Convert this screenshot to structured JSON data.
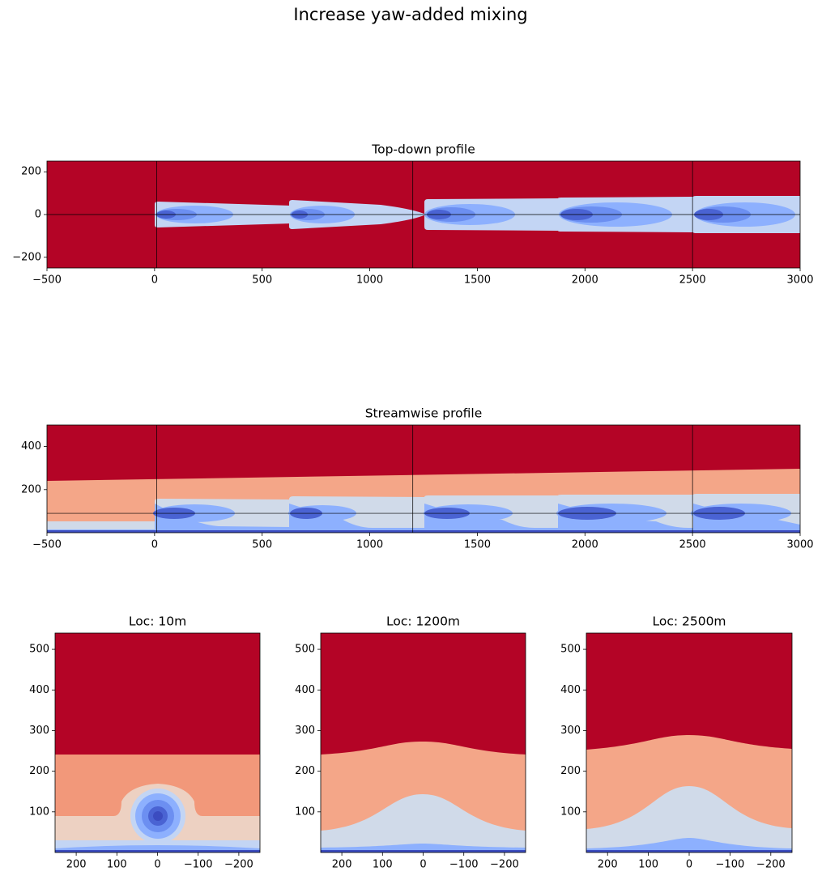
{
  "title": "Increase yaw-added mixing",
  "chart_data": [
    {
      "type": "contour",
      "title": "Top-down profile",
      "xlim": [
        -500,
        3000
      ],
      "ylim": [
        -250,
        250
      ],
      "xticks": [
        {
          "value": -500,
          "label": "−500"
        },
        0,
        500,
        1000,
        1500,
        2000,
        2500,
        3000
      ],
      "yticks": [
        {
          "value": -200,
          "label": "−200"
        },
        0,
        200
      ],
      "vlines": [
        10,
        1200,
        2500
      ],
      "hline": 0
    },
    {
      "type": "contour",
      "title": "Streamwise profile",
      "xlim": [
        -500,
        3000
      ],
      "ylim": [
        0,
        500
      ],
      "xticks": [
        {
          "value": -500,
          "label": "−500"
        },
        0,
        500,
        1000,
        1500,
        2000,
        2500,
        3000
      ],
      "yticks": [
        200,
        400
      ],
      "vlines": [
        10,
        1200,
        2500
      ],
      "hline": 90
    },
    {
      "type": "contour",
      "title": "Loc: 10m",
      "xlim": [
        252,
        -252
      ],
      "ylim": [
        0,
        540
      ],
      "xticks": [
        200,
        100,
        0,
        {
          "value": -100,
          "label": "−100"
        },
        {
          "value": -200,
          "label": "−200"
        }
      ],
      "yticks": [
        100,
        200,
        300,
        400,
        500
      ]
    },
    {
      "type": "contour",
      "title": "Loc: 1200m",
      "xlim": [
        252,
        -252
      ],
      "ylim": [
        0,
        540
      ],
      "xticks": [
        200,
        100,
        0,
        {
          "value": -100,
          "label": "−100"
        },
        {
          "value": -200,
          "label": "−200"
        }
      ],
      "yticks": [
        100,
        200,
        300,
        400,
        500
      ]
    },
    {
      "type": "contour",
      "title": "Loc: 2500m",
      "xlim": [
        252,
        -252
      ],
      "ylim": [
        0,
        540
      ],
      "xticks": [
        200,
        100,
        0,
        {
          "value": -100,
          "label": "−100"
        },
        {
          "value": -200,
          "label": "−200"
        }
      ],
      "yticks": [
        100,
        200,
        300,
        400,
        500
      ]
    }
  ]
}
